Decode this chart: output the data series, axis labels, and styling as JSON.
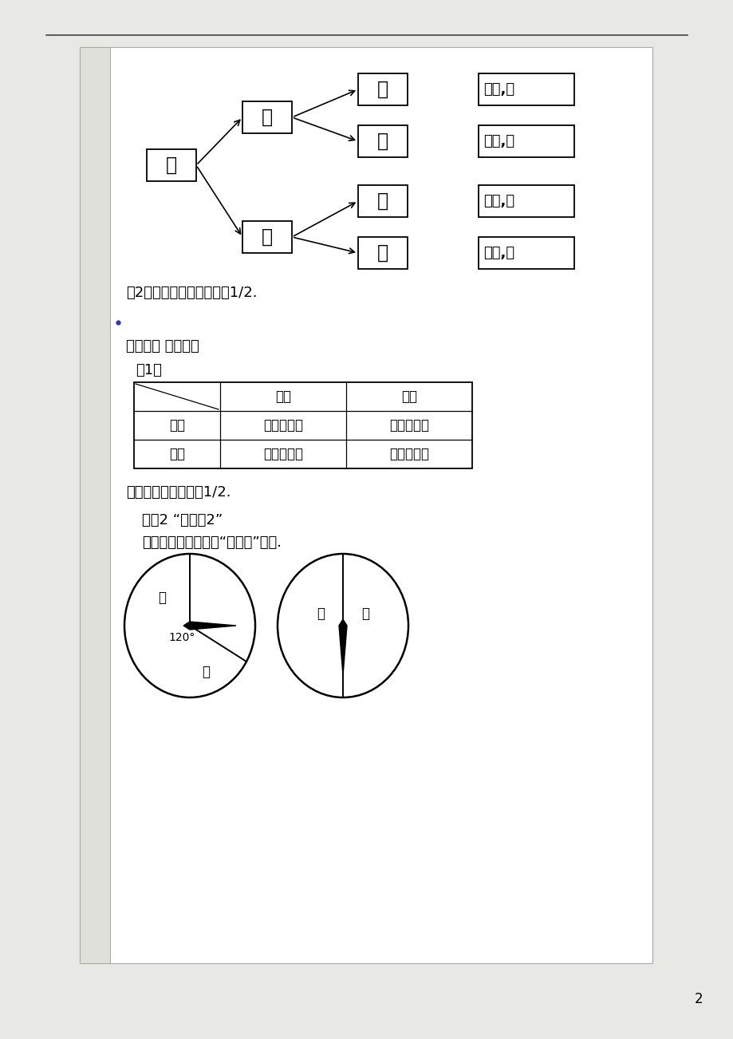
{
  "bg_color": "#e8e8e4",
  "page_bg": "#ffffff",
  "margin_bg": "#e8e8e4",
  "text_color": "#000000",
  "line1_text": "（2）游戏者获胜的概率是1/2.",
  "line2_text": "解法二： 借助表格",
  "line3_text": "（1）",
  "line4_text": "游戏者获胜的概率是1/2.",
  "line5_text": "游戏2 “配紫色2”",
  "line6_text": "用图所示的转盘进行“配紫色”游戏.",
  "tree_kai": "开",
  "tree_hong": "红",
  "tree_lan": "蓝",
  "result1": "（红,红",
  "result2": "（红,蓝",
  "result3": "（蓝,红",
  "result4": "（蓝,蓝",
  "table_header_col1": "红色",
  "table_header_col2": "蓝色",
  "table_row1": "红色",
  "table_row2": "蓝色",
  "table_cell11": "（红，红）",
  "table_cell12": "（红，蓝）",
  "table_cell21": "（蓝，红）",
  "table_cell22": "（蓝，蓝）",
  "angle_label": "120°",
  "page_num": "2"
}
